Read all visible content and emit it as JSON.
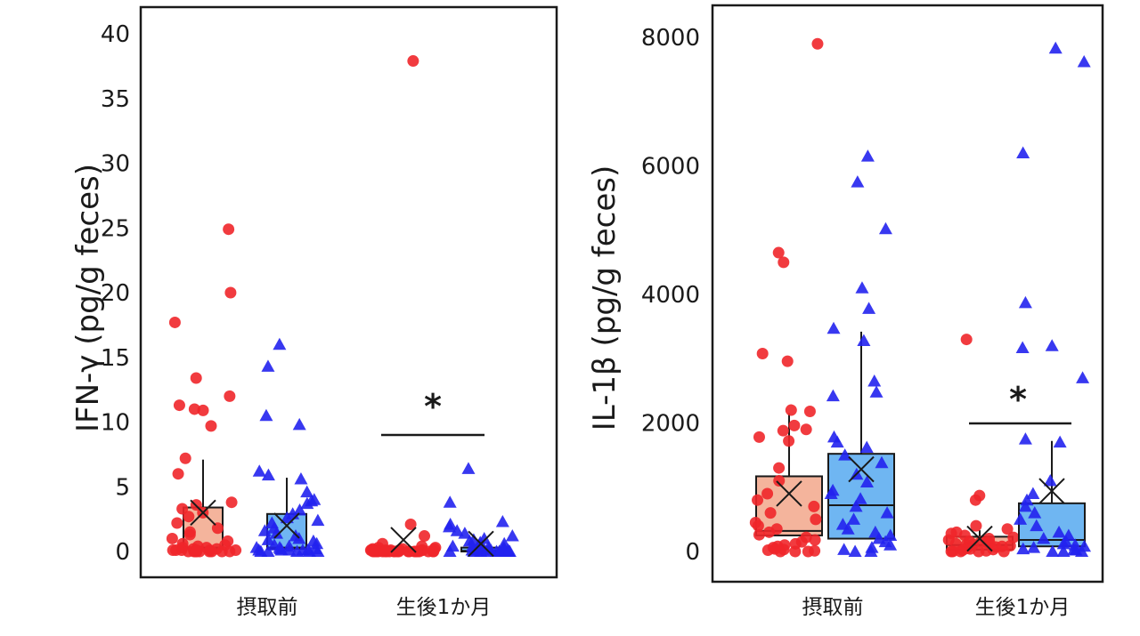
{
  "colors": {
    "red_points": "#f0262a",
    "blue_points": "#2222ee",
    "red_box_fill": "#f4b49c",
    "blue_box_fill": "#6fb6f2",
    "frame": "#1a1a1a"
  },
  "chart_data": [
    {
      "type": "box-strip",
      "ylabel": "IFN-γ (pg/g feces)",
      "ylim": [
        0,
        42
      ],
      "yticks": [
        0,
        5,
        10,
        15,
        20,
        25,
        30,
        35,
        40
      ],
      "categories": [
        "摂取前",
        "生後1か月"
      ],
      "significance": {
        "label": "*",
        "group": "生後1か月",
        "y": 9
      },
      "groups": [
        {
          "category": "摂取前",
          "series": "red",
          "marker": "circle",
          "box": {
            "q1": 0.2,
            "median": 0.3,
            "q3": 3.4,
            "whisker_low": 0,
            "whisker_high": 7.1,
            "mean": 3.0
          },
          "points": [
            24.9,
            20.0,
            17.7,
            13.4,
            12.0,
            11.3,
            11.0,
            10.9,
            9.7,
            7.2,
            6.0,
            3.8,
            3.6,
            3.3,
            3.0,
            2.7,
            2.2,
            1.8,
            1.5,
            1.3,
            1.0,
            0.8,
            0.6,
            0.5,
            0.4,
            0.3,
            0.3,
            0.2,
            0.2,
            0.1,
            0.1,
            0.1,
            0.1,
            0.1,
            0.1,
            0.0,
            0.0,
            0.0,
            0.0,
            0.0,
            0.0,
            0.0,
            0.0,
            0.0,
            0.0
          ]
        },
        {
          "category": "摂取前",
          "series": "blue",
          "marker": "triangle",
          "box": {
            "q1": 0.2,
            "median": 0.3,
            "q3": 2.9,
            "whisker_low": 0,
            "whisker_high": 5.7,
            "mean": 2.0
          },
          "points": [
            16.0,
            14.3,
            10.5,
            9.8,
            6.2,
            5.9,
            5.6,
            4.6,
            4.0,
            3.9,
            3.7,
            3.2,
            2.9,
            2.6,
            2.4,
            2.2,
            1.8,
            1.6,
            1.4,
            1.2,
            1.0,
            0.9,
            0.8,
            0.6,
            0.5,
            0.4,
            0.3,
            0.3,
            0.2,
            0.2,
            0.1,
            0.1,
            0.1,
            0.1,
            0.1,
            0.0,
            0.0,
            0.0,
            0.0,
            0.0
          ]
        },
        {
          "category": "生後1か月",
          "series": "red",
          "marker": "circle",
          "box": {
            "q1": 0.0,
            "median": 0.05,
            "q3": 0.2,
            "whisker_low": 0,
            "whisker_high": 0.4,
            "mean": 0.9
          },
          "points": [
            37.9,
            2.1,
            1.2,
            0.6,
            0.4,
            0.3,
            0.3,
            0.2,
            0.2,
            0.2,
            0.1,
            0.1,
            0.1,
            0.1,
            0.1,
            0.1,
            0.1,
            0.1,
            0.1,
            0.0,
            0.0,
            0.0,
            0.0,
            0.0,
            0.0,
            0.0,
            0.0,
            0.0,
            0.0,
            0.0,
            0.0,
            0.0,
            0.0,
            0.0,
            0.0,
            0.0,
            0.0,
            0.0,
            0.0,
            0.0
          ]
        },
        {
          "category": "生後1か月",
          "series": "blue",
          "marker": "triangle",
          "box": {
            "q1": 0.0,
            "median": 0.05,
            "q3": 0.3,
            "whisker_low": 0,
            "whisker_high": 0.7,
            "mean": 0.6
          },
          "points": [
            6.4,
            3.8,
            2.3,
            2.1,
            1.9,
            1.6,
            1.4,
            1.2,
            1.0,
            0.9,
            0.8,
            0.7,
            0.6,
            0.5,
            0.4,
            0.4,
            0.3,
            0.3,
            0.2,
            0.2,
            0.2,
            0.1,
            0.1,
            0.1,
            0.1,
            0.1,
            0.1,
            0.0,
            0.0,
            0.0,
            0.0,
            0.0,
            0.0,
            0.0,
            0.0,
            0.0
          ]
        }
      ]
    },
    {
      "type": "box-strip",
      "ylabel": "IL-1β (pg/g feces)",
      "ylim": [
        -150,
        8400
      ],
      "yticks": [
        0,
        2000,
        4000,
        6000,
        8000
      ],
      "categories": [
        "摂取前",
        "生後1か月"
      ],
      "significance": {
        "label": "*",
        "group": "生後1か月",
        "y": 1980
      },
      "groups": [
        {
          "category": "摂取前",
          "series": "red",
          "marker": "circle",
          "box": {
            "q1": 250,
            "median": 320,
            "q3": 1170,
            "whisker_low": 0,
            "whisker_high": 2150,
            "mean": 900
          },
          "points": [
            7900,
            4650,
            4500,
            3080,
            2960,
            2200,
            2180,
            1960,
            1900,
            1880,
            1780,
            1720,
            1300,
            1100,
            900,
            800,
            700,
            600,
            500,
            450,
            400,
            350,
            300,
            260,
            220,
            180,
            150,
            120,
            100,
            80,
            60,
            40,
            30,
            20,
            10,
            0,
            0,
            0
          ]
        },
        {
          "category": "摂取前",
          "series": "blue",
          "marker": "triangle",
          "box": {
            "q1": 200,
            "median": 720,
            "q3": 1520,
            "whisker_low": 0,
            "whisker_high": 3420,
            "mean": 1280
          },
          "points": [
            6150,
            5750,
            5020,
            4100,
            3780,
            3470,
            3280,
            2650,
            2480,
            2420,
            1780,
            1700,
            1620,
            1500,
            1380,
            1200,
            1080,
            950,
            900,
            820,
            700,
            600,
            500,
            420,
            350,
            300,
            250,
            200,
            150,
            100,
            60,
            30,
            0,
            0
          ]
        },
        {
          "category": "生後1か月",
          "series": "red",
          "marker": "circle",
          "box": {
            "q1": 30,
            "median": 100,
            "q3": 230,
            "whisker_low": 0,
            "whisker_high": 330,
            "mean": 200
          },
          "points": [
            3300,
            870,
            800,
            400,
            350,
            300,
            280,
            250,
            220,
            200,
            180,
            160,
            150,
            140,
            130,
            120,
            110,
            100,
            90,
            80,
            70,
            60,
            50,
            40,
            30,
            20,
            10,
            0,
            0,
            0,
            0,
            0
          ]
        },
        {
          "category": "生後1か月",
          "series": "blue",
          "marker": "triangle",
          "box": {
            "q1": 80,
            "median": 180,
            "q3": 750,
            "whisker_low": 0,
            "whisker_high": 1720,
            "mean": 940
          },
          "points": [
            7830,
            7620,
            6200,
            3870,
            3200,
            3170,
            2700,
            1750,
            1700,
            1100,
            900,
            800,
            700,
            600,
            500,
            400,
            300,
            250,
            200,
            150,
            120,
            100,
            80,
            60,
            40,
            30,
            20,
            0,
            0,
            0
          ]
        }
      ]
    }
  ]
}
